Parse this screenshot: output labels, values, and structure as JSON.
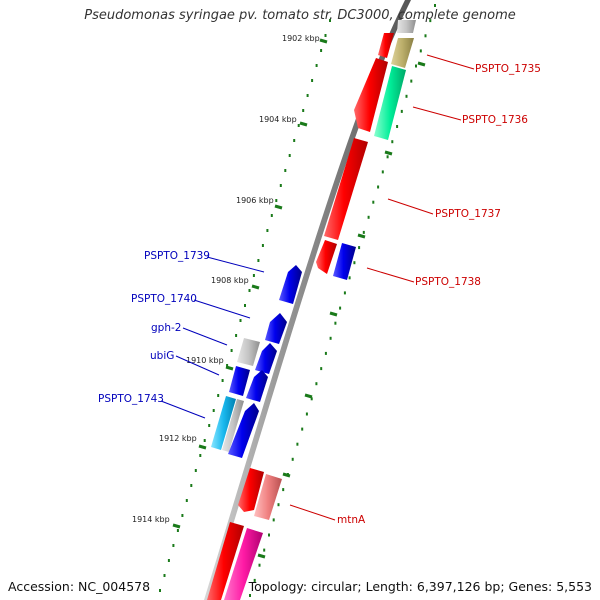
{
  "title": "Pseudomonas syringae pv. tomato str. DC3000, complete genome",
  "footer": {
    "accession": "Accession: NC_004578",
    "summary": "Topology: circular; Length: 6,397,126 bp; Genes: 5,553"
  },
  "colors": {
    "backbone": "#777777",
    "tick": "#1a7a1a",
    "forward_label": "#cc0000",
    "reverse_label": "#0000bb"
  },
  "ticks": [
    "1902 kbp",
    "1904 kbp",
    "1906 kbp",
    "1908 kbp",
    "1910 kbp",
    "1912 kbp",
    "1914 kbp"
  ],
  "gene_labels": [
    {
      "id": "PSPTO_1735",
      "strand": "forward"
    },
    {
      "id": "PSPTO_1736",
      "strand": "forward"
    },
    {
      "id": "PSPTO_1737",
      "strand": "forward"
    },
    {
      "id": "PSPTO_1738",
      "strand": "forward"
    },
    {
      "id": "mtnA",
      "strand": "forward"
    },
    {
      "id": "PSPTO_1739",
      "strand": "reverse"
    },
    {
      "id": "PSPTO_1740",
      "strand": "reverse"
    },
    {
      "id": "gph-2",
      "strand": "reverse"
    },
    {
      "id": "ubiG",
      "strand": "reverse"
    },
    {
      "id": "PSPTO_1743",
      "strand": "reverse"
    }
  ]
}
